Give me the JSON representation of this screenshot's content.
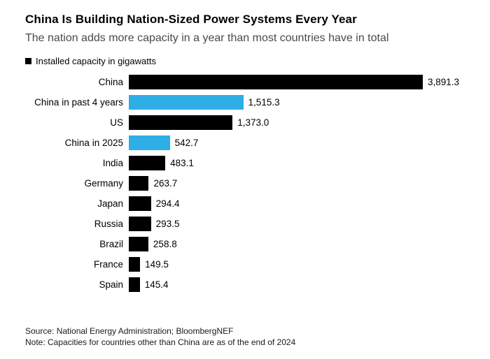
{
  "header": {
    "title": "China Is Building Nation-Sized Power Systems Every Year",
    "subtitle": "The nation adds more capacity in a year than most countries have in total",
    "legend_label": "Installed capacity in gigawatts"
  },
  "colors": {
    "bar_black": "#000000",
    "bar_blue": "#2DAEE4",
    "subtitle_gray": "#4a4a4a",
    "background": "#ffffff"
  },
  "chart_data": {
    "type": "bar",
    "orientation": "horizontal",
    "title": "China Is Building Nation-Sized Power Systems Every Year",
    "subtitle": "The nation adds more capacity in a year than most countries have in total",
    "legend": "Installed capacity in gigawatts",
    "legend_position": "top-left",
    "unit": "gigawatts",
    "grid": false,
    "xlim": [
      0,
      3891.3
    ],
    "categories": [
      "China",
      "China in past 4 years",
      "US",
      "China in 2025",
      "India",
      "Germany",
      "Japan",
      "Russia",
      "Brazil",
      "France",
      "Spain"
    ],
    "values": [
      3891.3,
      1515.3,
      1373.0,
      542.7,
      483.1,
      263.7,
      294.4,
      293.5,
      258.8,
      149.5,
      145.4
    ],
    "value_labels": [
      "3,891.3",
      "1,515.3",
      "1,373.0",
      "542.7",
      "483.1",
      "263.7",
      "294.4",
      "293.5",
      "258.8",
      "149.5",
      "145.4"
    ],
    "bar_colors": [
      "#000000",
      "#2DAEE4",
      "#000000",
      "#2DAEE4",
      "#000000",
      "#000000",
      "#000000",
      "#000000",
      "#000000",
      "#000000",
      "#000000"
    ]
  },
  "footer": {
    "source": "Source: National Energy Administration; BloombergNEF",
    "note": "Note: Capacities for countries other than China are as of the end of 2024"
  }
}
